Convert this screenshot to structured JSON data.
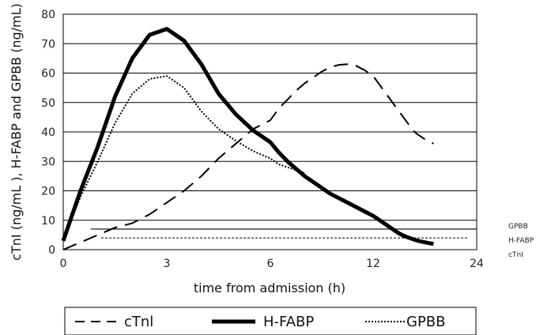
{
  "chart_data": {
    "type": "line",
    "xlabel": "time from admission (h)",
    "ylabel": "cTnI (ng/mL ), H-FABP and GPBB (ng/mL)",
    "x_tick_labels": [
      "0",
      "3",
      "6",
      "12",
      "24"
    ],
    "y_ticks": [
      0,
      10,
      20,
      30,
      40,
      50,
      60,
      70,
      80
    ],
    "ylim": [
      0,
      80
    ],
    "grid": "horizontal",
    "series": [
      {
        "name": "cTnI",
        "style": "dashed",
        "x": [
          0,
          0.2,
          0.5,
          1,
          1.5,
          2,
          2.5,
          3,
          3.5,
          4,
          4.5,
          5,
          5.5,
          6,
          6.5,
          7,
          7.5,
          8,
          8.5,
          9,
          9.5,
          10,
          10.5,
          11,
          11.5,
          12,
          12.5,
          13,
          13.5,
          14,
          14.5,
          15,
          15.5,
          16,
          16.5,
          17,
          17.5,
          18,
          18.5,
          19
        ],
        "values": [
          0,
          1,
          2.5,
          5,
          7.5,
          9,
          12,
          16,
          20,
          25,
          31,
          36,
          41,
          44,
          48,
          51,
          54,
          56.5,
          58.5,
          60.5,
          62,
          62.8,
          63,
          62.5,
          61,
          59,
          57,
          55,
          53,
          51,
          49,
          47,
          45,
          43,
          41,
          39.5,
          38.5,
          37.5,
          37,
          36
        ]
      },
      {
        "name": "H-FABP",
        "style": "solid-thick",
        "x": [
          0,
          0.5,
          1,
          1.5,
          2,
          2.5,
          3,
          3.5,
          4,
          4.5,
          5,
          5.5,
          6,
          6.5,
          7,
          7.5,
          8,
          8.5,
          9,
          9.5,
          10,
          10.5,
          11,
          11.5,
          12,
          12.5,
          13,
          13.5,
          14,
          14.5,
          15,
          15.5,
          16,
          16.5,
          17,
          17.5,
          18,
          18.5,
          19
        ],
        "values": [
          3,
          20,
          35,
          52,
          65,
          73,
          75,
          71,
          63,
          53,
          46,
          40.5,
          36.5,
          33,
          30,
          27.5,
          25,
          23,
          21,
          19,
          17.5,
          16,
          14.5,
          13,
          11.5,
          10.5,
          9.5,
          8.5,
          7.5,
          6.5,
          5.5,
          4.8,
          4.2,
          3.7,
          3.2,
          2.8,
          2.5,
          2.2,
          2
        ]
      },
      {
        "name": "GPBB",
        "style": "dotted",
        "x": [
          0,
          0.5,
          1,
          1.5,
          2,
          2.5,
          3,
          3.5,
          4,
          4.5,
          5,
          5.5,
          6,
          6.5,
          7,
          7.5,
          8
        ],
        "values": [
          3,
          18,
          30,
          43,
          53,
          58,
          59,
          55,
          47,
          41,
          37,
          33.5,
          31,
          29,
          28,
          27,
          26
        ]
      }
    ],
    "reference_lines": [
      {
        "label": "GPBB",
        "value": 7
      },
      {
        "label": "H-FABP",
        "value": 4
      },
      {
        "label": "cTnI",
        "value": 4
      }
    ],
    "legend": {
      "placement": "bottom",
      "items": [
        "cTnl",
        "H-FABP",
        "GPBB"
      ]
    }
  }
}
